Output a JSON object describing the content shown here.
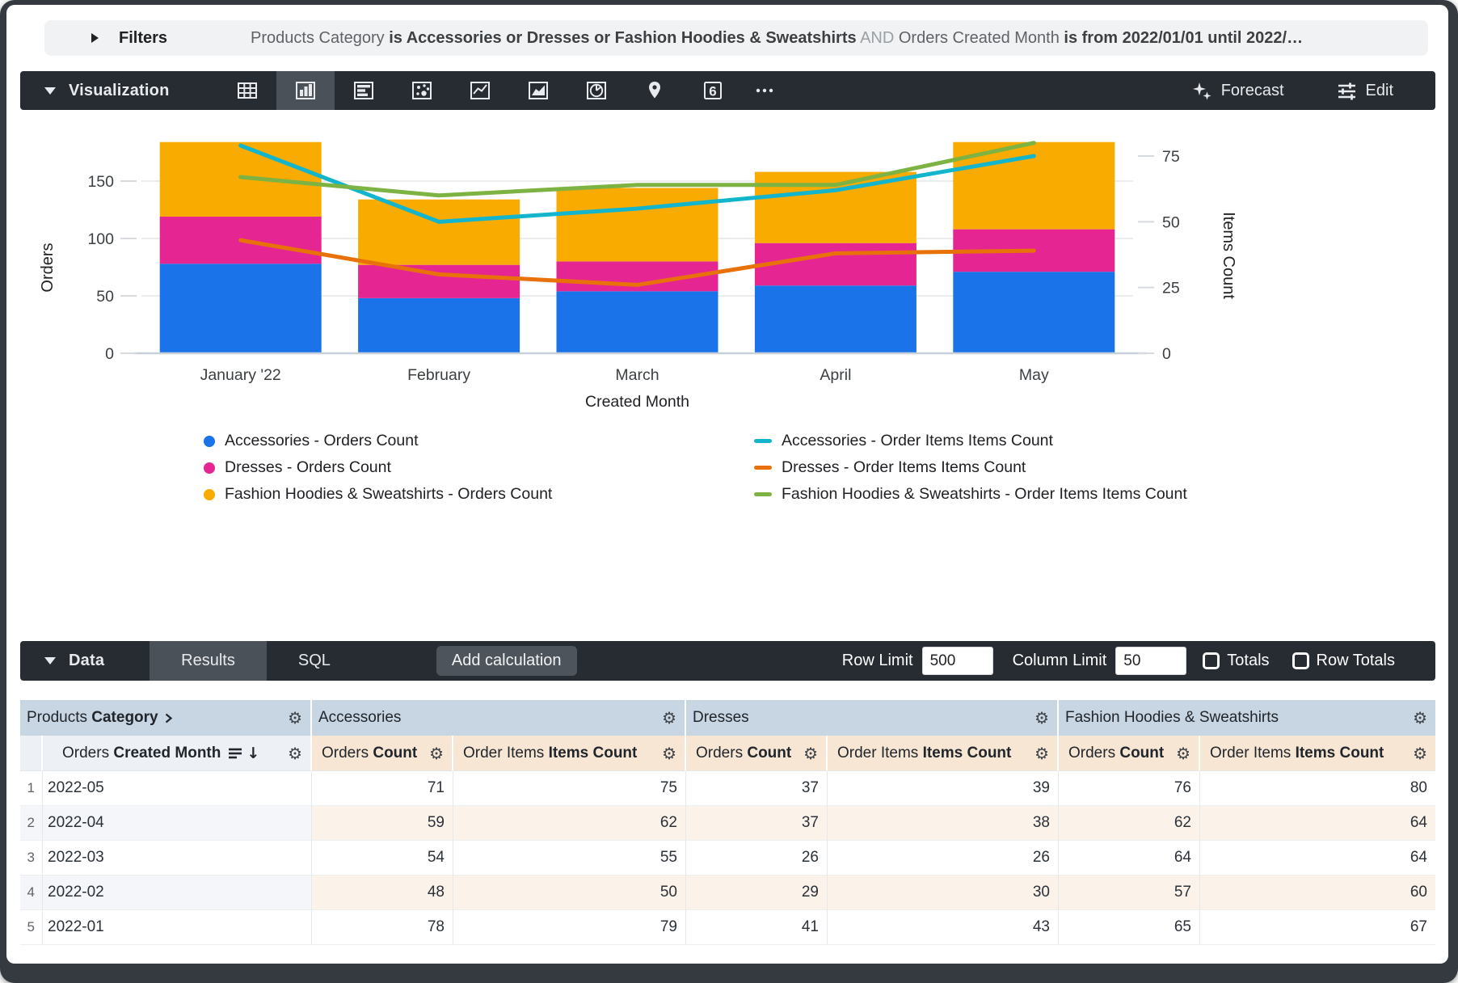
{
  "filters": {
    "label": "Filters",
    "summary": {
      "dim1": "Products Category ",
      "pred1": "is Accessories or Dresses or Fashion Hoodies & Sweatshirts",
      "and": " AND ",
      "dim2": "Orders Created Month ",
      "pred2": "is from 2022/01/01 until 2022/…"
    }
  },
  "viz": {
    "section_label": "Visualization",
    "chart_types": [
      "table",
      "column",
      "bar",
      "scatter",
      "line",
      "area",
      "pie",
      "map",
      "single-value",
      "more"
    ],
    "active_chart_type": "column",
    "forecast_label": "Forecast",
    "edit_label": "Edit"
  },
  "chart_data": {
    "type": "combo: stacked column + line, dual axis",
    "categories": [
      "January '22",
      "February",
      "March",
      "April",
      "May"
    ],
    "x_axis_label": "Created Month",
    "left_axis": {
      "label": "Orders",
      "ticks": [
        0,
        50,
        100,
        150
      ],
      "max": 195
    },
    "right_axis": {
      "label": "Items Count",
      "ticks": [
        0,
        25,
        50,
        75
      ],
      "max": 85
    },
    "bar_series": [
      {
        "name": "Accessories - Orders Count",
        "color": "#1A73E8",
        "values": [
          78,
          48,
          54,
          59,
          71
        ]
      },
      {
        "name": "Dresses - Orders Count",
        "color": "#E52592",
        "values": [
          41,
          29,
          26,
          37,
          37
        ]
      },
      {
        "name": "Fashion Hoodies & Sweatshirts - Orders Count",
        "color": "#F9AB00",
        "values": [
          65,
          57,
          64,
          62,
          76
        ]
      }
    ],
    "line_series": [
      {
        "name": "Accessories - Order Items Items Count",
        "color": "#12B5CB",
        "values": [
          79,
          50,
          55,
          62,
          75
        ]
      },
      {
        "name": "Dresses - Order Items Items Count",
        "color": "#E8710A",
        "values": [
          43,
          30,
          26,
          38,
          39
        ]
      },
      {
        "name": "Fashion Hoodies & Sweatshirts - Order Items Items Count",
        "color": "#7CB342",
        "values": [
          67,
          60,
          64,
          64,
          80
        ]
      }
    ],
    "legend_position": "bottom, two columns: bars left, lines right",
    "grid": true
  },
  "data_section": {
    "section_label": "Data",
    "tabs": [
      {
        "label": "Results",
        "active": true
      },
      {
        "label": "SQL",
        "active": false
      }
    ],
    "add_calculation_label": "Add calculation",
    "row_limit_label": "Row Limit",
    "row_limit_value": "500",
    "column_limit_label": "Column Limit",
    "column_limit_value": "50",
    "totals_label": "Totals",
    "totals_checked": false,
    "row_totals_label": "Row Totals",
    "row_totals_checked": false
  },
  "table": {
    "group_headers": [
      {
        "regular": "Products ",
        "bold": "Category"
      },
      {
        "label": "Accessories"
      },
      {
        "label": "Dresses"
      },
      {
        "label": "Fashion Hoodies & Sweatshirts"
      }
    ],
    "column_headers": [
      {
        "regular": "Orders ",
        "bold": "Created Month"
      },
      {
        "regular": "Orders ",
        "bold": "Count"
      },
      {
        "regular": "Order Items ",
        "bold": "Items Count"
      },
      {
        "regular": "Orders ",
        "bold": "Count"
      },
      {
        "regular": "Order Items ",
        "bold": "Items Count"
      },
      {
        "regular": "Orders ",
        "bold": "Count"
      },
      {
        "regular": "Order Items ",
        "bold": "Items Count"
      }
    ],
    "rows": [
      {
        "num": "1",
        "dimension": "2022-05",
        "values": [
          "71",
          "75",
          "37",
          "39",
          "76",
          "80"
        ]
      },
      {
        "num": "2",
        "dimension": "2022-04",
        "values": [
          "59",
          "62",
          "37",
          "38",
          "62",
          "64"
        ]
      },
      {
        "num": "3",
        "dimension": "2022-03",
        "values": [
          "54",
          "55",
          "26",
          "26",
          "64",
          "64"
        ]
      },
      {
        "num": "4",
        "dimension": "2022-02",
        "values": [
          "48",
          "50",
          "29",
          "30",
          "57",
          "60"
        ]
      },
      {
        "num": "5",
        "dimension": "2022-01",
        "values": [
          "78",
          "79",
          "41",
          "43",
          "65",
          "67"
        ]
      }
    ]
  },
  "icons": {
    "gear": "⚙",
    "sort_arrow": "↓",
    "single_value_digit": "6"
  },
  "colors": {
    "toolbar_bg": "#262c32",
    "toolbar_active_bg": "#4b5158",
    "accessories_bar": "#1A73E8",
    "dresses_bar": "#E52592",
    "hoodies_bar": "#F9AB00",
    "accessories_line": "#12B5CB",
    "dresses_line": "#E8710A",
    "hoodies_line": "#7CB342",
    "group_header_bg": "#c8d5e2",
    "measure_header_bg": "#f7e6d3",
    "dimension_header_bg": "#edf1f6"
  }
}
